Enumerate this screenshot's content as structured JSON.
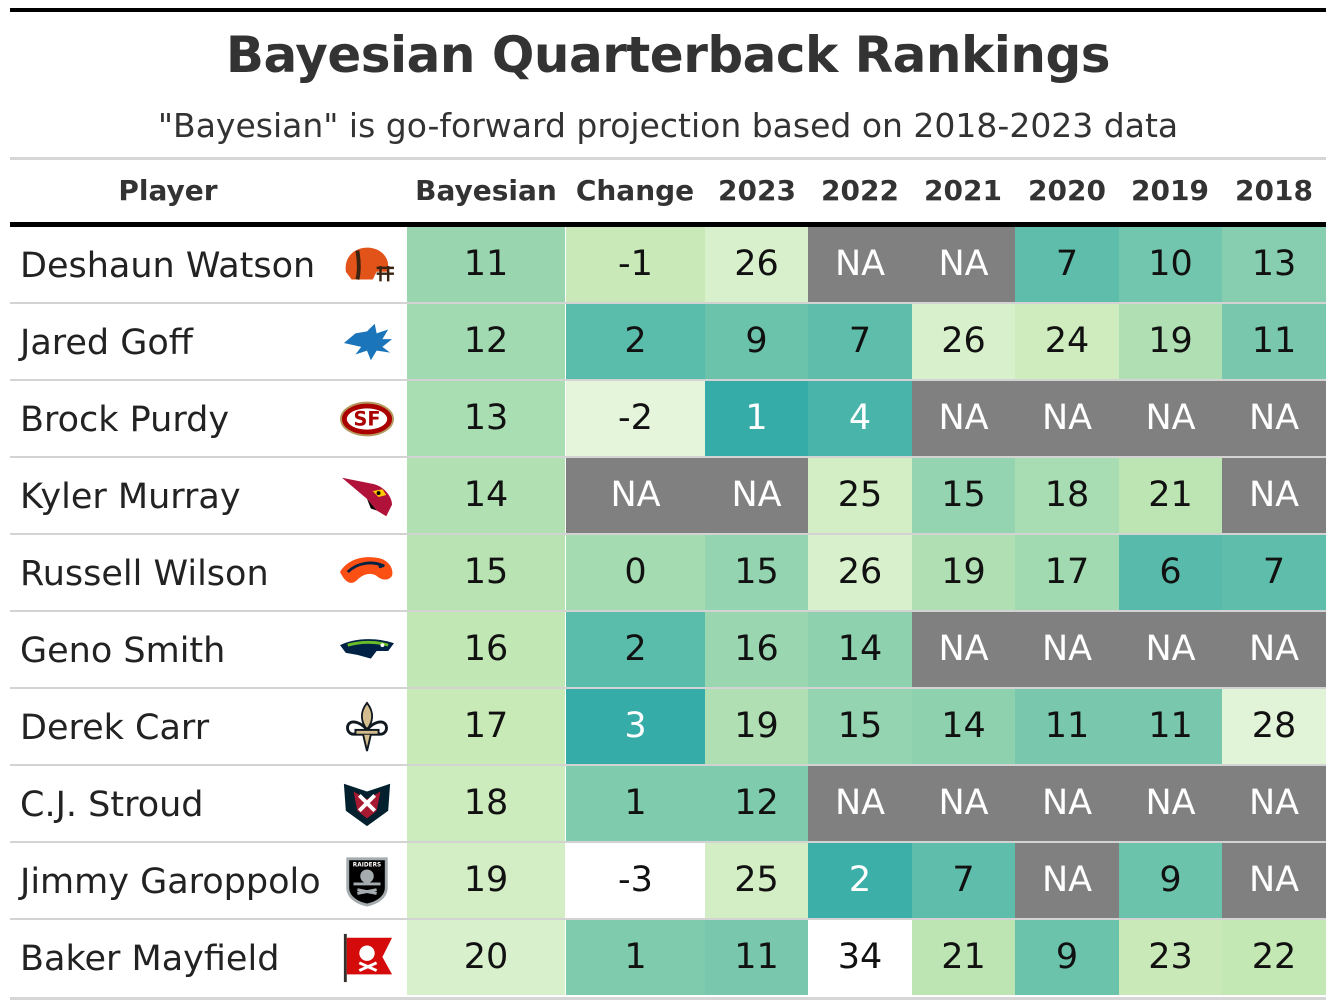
{
  "chart_data": {
    "type": "table",
    "title": "Bayesian Quarterback Rankings",
    "subtitle": "\"Bayesian\" is go-forward projection based on 2018-2023 data",
    "columns": [
      "Player",
      "Bayesian",
      "Change",
      "2023",
      "2022",
      "2021",
      "2020",
      "2019",
      "2018"
    ],
    "rows": [
      {
        "player": "Deshaun Watson",
        "team_icon": "browns-helmet-icon",
        "values": [
          "11",
          "-1",
          "26",
          "NA",
          "NA",
          "7",
          "10",
          "13"
        ]
      },
      {
        "player": "Jared Goff",
        "team_icon": "lions-icon",
        "values": [
          "12",
          "2",
          "9",
          "7",
          "26",
          "24",
          "19",
          "11"
        ]
      },
      {
        "player": "Brock Purdy",
        "team_icon": "49ers-icon",
        "values": [
          "13",
          "-2",
          "1",
          "4",
          "NA",
          "NA",
          "NA",
          "NA"
        ]
      },
      {
        "player": "Kyler Murray",
        "team_icon": "cardinals-icon",
        "values": [
          "14",
          "NA",
          "NA",
          "25",
          "15",
          "18",
          "21",
          "NA"
        ]
      },
      {
        "player": "Russell Wilson",
        "team_icon": "broncos-icon",
        "values": [
          "15",
          "0",
          "15",
          "26",
          "19",
          "17",
          "6",
          "7"
        ]
      },
      {
        "player": "Geno Smith",
        "team_icon": "seahawks-icon",
        "values": [
          "16",
          "2",
          "16",
          "14",
          "NA",
          "NA",
          "NA",
          "NA"
        ]
      },
      {
        "player": "Derek Carr",
        "team_icon": "saints-fleur-de-lis-icon",
        "values": [
          "17",
          "3",
          "19",
          "15",
          "14",
          "11",
          "11",
          "28"
        ]
      },
      {
        "player": "C.J. Stroud",
        "team_icon": "texans-icon",
        "values": [
          "18",
          "1",
          "12",
          "NA",
          "NA",
          "NA",
          "NA",
          "NA"
        ]
      },
      {
        "player": "Jimmy Garoppolo",
        "team_icon": "raiders-shield-icon",
        "values": [
          "19",
          "-3",
          "25",
          "2",
          "7",
          "NA",
          "9",
          "NA"
        ]
      },
      {
        "player": "Baker Mayfield",
        "team_icon": "buccaneers-flag-icon",
        "values": [
          "20",
          "1",
          "11",
          "34",
          "21",
          "9",
          "23",
          "22"
        ]
      }
    ],
    "color_scale": {
      "na_color": "#808080",
      "low_color": "#ffffff",
      "mid_color": "#c6e9b4",
      "high_color": "#35aca8"
    }
  }
}
